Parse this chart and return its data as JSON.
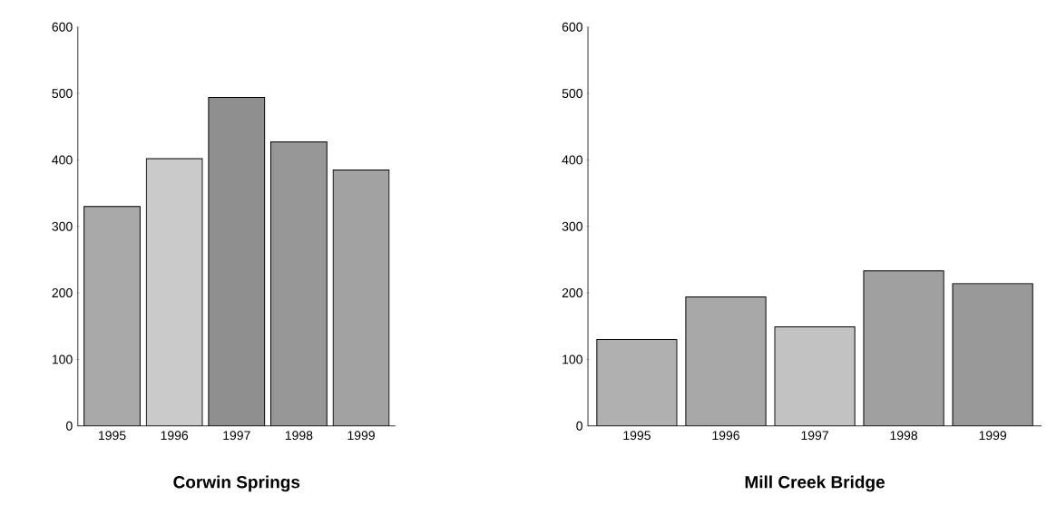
{
  "chart_data": [
    {
      "type": "bar",
      "title": "Corwin Springs",
      "categories": [
        "1995",
        "1996",
        "1997",
        "1998",
        "1999"
      ],
      "values": [
        330,
        402,
        494,
        427,
        385
      ],
      "colors": [
        "#a9a9a9",
        "#cacaca",
        "#8f8f8f",
        "#979797",
        "#a2a2a2"
      ],
      "ylim": [
        0,
        600
      ],
      "yticks": [
        0,
        100,
        200,
        300,
        400,
        500,
        600
      ]
    },
    {
      "type": "bar",
      "title": "Mill Creek Bridge",
      "categories": [
        "1995",
        "1996",
        "1997",
        "1998",
        "1999"
      ],
      "values": [
        130,
        194,
        149,
        233,
        214
      ],
      "colors": [
        "#b0b0b0",
        "#a8a8a8",
        "#c2c2c2",
        "#a0a0a0",
        "#999999"
      ],
      "ylim": [
        0,
        600
      ],
      "yticks": [
        0,
        100,
        200,
        300,
        400,
        500,
        600
      ]
    }
  ]
}
